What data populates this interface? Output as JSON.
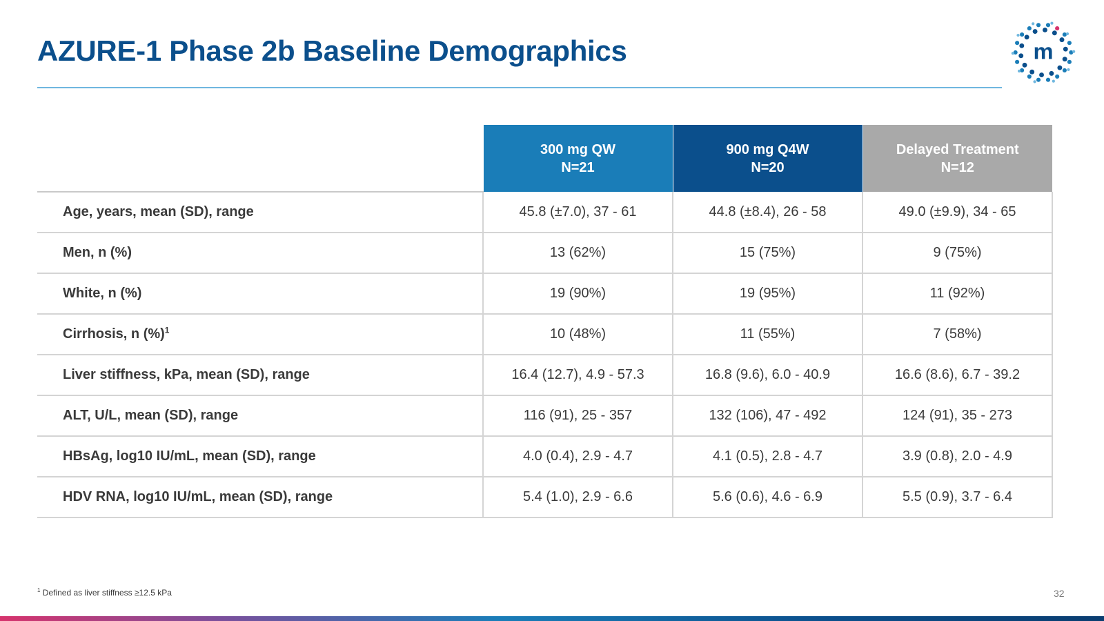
{
  "title": "AZURE-1 Phase 2b Baseline Demographics",
  "logo": {
    "icon": "m-dots-logo",
    "letter": "m"
  },
  "colors": {
    "title": "#0b4f8c",
    "header_300mg": "#1a7db8",
    "header_900mg": "#0b4f8c",
    "header_delayed": "#a9a9a9"
  },
  "table": {
    "columns": [
      {
        "line1": "300 mg QW",
        "line2": "N=21"
      },
      {
        "line1": "900 mg Q4W",
        "line2": "N=20"
      },
      {
        "line1": "Delayed Treatment",
        "line2": "N=12"
      }
    ],
    "rows": [
      {
        "label": "Age, years, mean (SD), range",
        "sup": "",
        "values": [
          "45.8 (±7.0), 37 - 61",
          "44.8 (±8.4), 26 - 58",
          "49.0 (±9.9), 34 - 65"
        ]
      },
      {
        "label": "Men, n (%)",
        "sup": "",
        "values": [
          "13 (62%)",
          "15 (75%)",
          "9 (75%)"
        ]
      },
      {
        "label": "White, n (%)",
        "sup": "",
        "values": [
          "19 (90%)",
          "19 (95%)",
          "11 (92%)"
        ]
      },
      {
        "label": "Cirrhosis, n (%)",
        "sup": "1",
        "values": [
          "10 (48%)",
          "11 (55%)",
          "7 (58%)"
        ]
      },
      {
        "label": "Liver stiffness, kPa, mean (SD), range",
        "sup": "",
        "values": [
          "16.4 (12.7), 4.9 - 57.3",
          "16.8 (9.6), 6.0 - 40.9",
          "16.6 (8.6), 6.7 - 39.2"
        ]
      },
      {
        "label": "ALT, U/L, mean (SD), range",
        "sup": "",
        "values": [
          "116 (91), 25 - 357",
          "132 (106), 47 - 492",
          "124 (91), 35 - 273"
        ]
      },
      {
        "label": "HBsAg, log10 IU/mL, mean (SD), range",
        "sup": "",
        "values": [
          "4.0 (0.4), 2.9 - 4.7",
          "4.1 (0.5), 2.8 - 4.7",
          "3.9 (0.8), 2.0 - 4.9"
        ]
      },
      {
        "label": "HDV RNA, log10 IU/mL, mean (SD), range",
        "sup": "",
        "values": [
          "5.4 (1.0), 2.9 - 6.6",
          "5.6 (0.6), 4.6 - 6.9",
          "5.5 (0.9), 3.7 - 6.4"
        ]
      }
    ]
  },
  "footnote": {
    "marker": "1",
    "text": " Defined as liver stiffness ≥12.5 kPa"
  },
  "page_number": "32"
}
